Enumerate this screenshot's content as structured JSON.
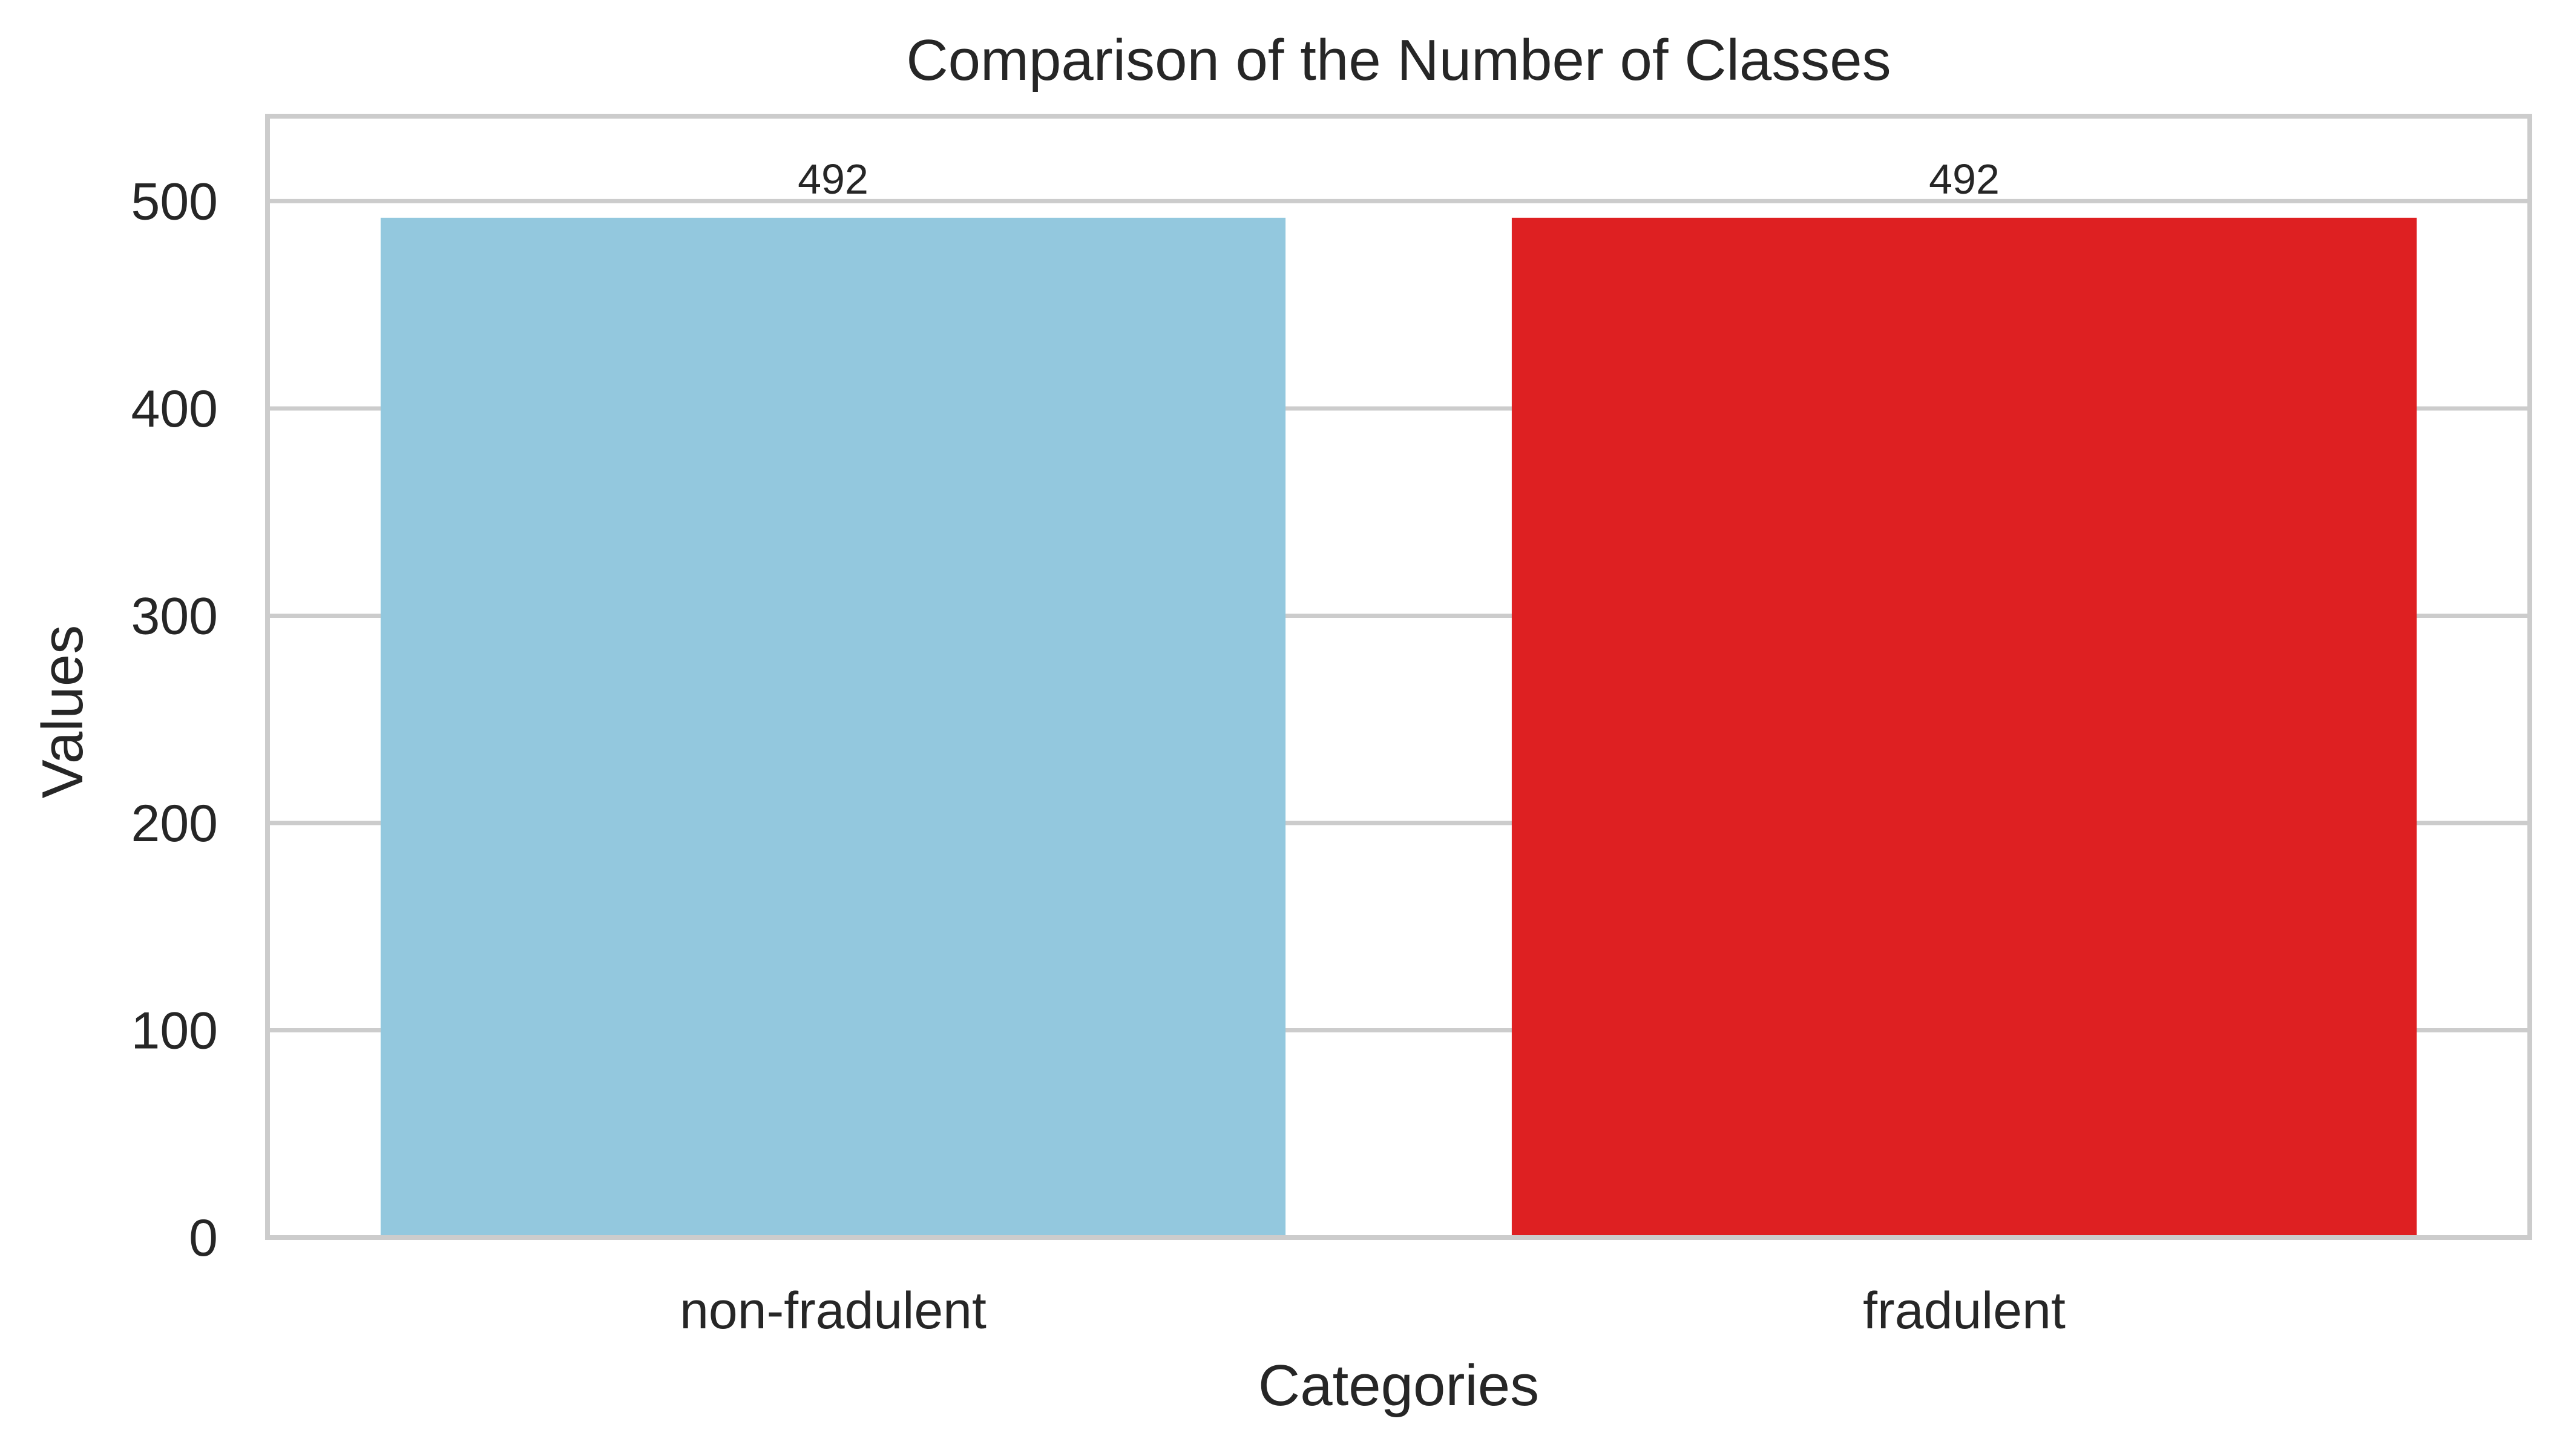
{
  "chart_data": {
    "type": "bar",
    "title": "Comparison of the Number of Classes",
    "xlabel": "Categories",
    "ylabel": "Values",
    "categories": [
      "non-fradulent",
      "fradulent"
    ],
    "values": [
      492,
      492
    ],
    "data_labels": [
      "492",
      "492"
    ],
    "colors": [
      "#93c8de",
      "#de2022"
    ],
    "ylim": [
      0,
      541
    ],
    "yticks": [
      0,
      100,
      200,
      300,
      400,
      500
    ],
    "ytick_labels": [
      "0",
      "100",
      "200",
      "300",
      "400",
      "500"
    ],
    "grid": "horizontal",
    "legend": "none"
  }
}
